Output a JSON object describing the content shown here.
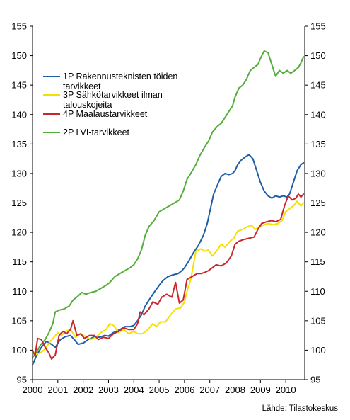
{
  "chart_data": {
    "type": "line",
    "title": "",
    "xlabel": "",
    "ylabel": "",
    "ylim": [
      95,
      155
    ],
    "y_ticks": [
      95,
      100,
      105,
      110,
      115,
      120,
      125,
      130,
      135,
      140,
      145,
      150,
      155
    ],
    "x_ticks": [
      "2000",
      "2001",
      "2002",
      "2003",
      "2004",
      "2005",
      "2006",
      "2007",
      "2008",
      "2009",
      "2010"
    ],
    "xlim": [
      2000,
      2010.75
    ],
    "grid": false,
    "legend_position": "top-left",
    "source": "Lähde: Tilastokeskus",
    "series": [
      {
        "name": "1P Rakennusteknisten töiden tarvikkeet",
        "color": "#1f5ea8",
        "points": [
          [
            2000.0,
            97.5
          ],
          [
            2000.15,
            99.0
          ],
          [
            2000.35,
            100.5
          ],
          [
            2000.55,
            101.5
          ],
          [
            2000.75,
            101.0
          ],
          [
            2000.9,
            100.5
          ],
          [
            2001.1,
            101.8
          ],
          [
            2001.3,
            102.3
          ],
          [
            2001.5,
            102.5
          ],
          [
            2001.65,
            101.8
          ],
          [
            2001.8,
            101.0
          ],
          [
            2002.0,
            101.2
          ],
          [
            2002.2,
            101.8
          ],
          [
            2002.45,
            102.3
          ],
          [
            2002.65,
            102.2
          ],
          [
            2002.85,
            102.5
          ],
          [
            2003.0,
            102.4
          ],
          [
            2003.2,
            103.0
          ],
          [
            2003.45,
            103.5
          ],
          [
            2003.65,
            104.0
          ],
          [
            2003.85,
            104.0
          ],
          [
            2004.0,
            104.2
          ],
          [
            2004.15,
            105.0
          ],
          [
            2004.3,
            106.0
          ],
          [
            2004.45,
            107.5
          ],
          [
            2004.6,
            108.5
          ],
          [
            2004.8,
            109.8
          ],
          [
            2005.0,
            111.0
          ],
          [
            2005.15,
            111.8
          ],
          [
            2005.35,
            112.5
          ],
          [
            2005.55,
            112.8
          ],
          [
            2005.75,
            113.0
          ],
          [
            2005.9,
            113.5
          ],
          [
            2006.0,
            114.0
          ],
          [
            2006.15,
            115.0
          ],
          [
            2006.35,
            116.5
          ],
          [
            2006.55,
            117.8
          ],
          [
            2006.75,
            119.5
          ],
          [
            2006.9,
            121.5
          ],
          [
            2007.0,
            123.5
          ],
          [
            2007.15,
            126.5
          ],
          [
            2007.3,
            128.0
          ],
          [
            2007.45,
            129.5
          ],
          [
            2007.6,
            130.0
          ],
          [
            2007.75,
            129.8
          ],
          [
            2007.9,
            130.0
          ],
          [
            2008.0,
            130.5
          ],
          [
            2008.1,
            131.5
          ],
          [
            2008.25,
            132.3
          ],
          [
            2008.4,
            132.8
          ],
          [
            2008.55,
            133.2
          ],
          [
            2008.7,
            132.5
          ],
          [
            2008.85,
            130.5
          ],
          [
            2009.0,
            128.5
          ],
          [
            2009.15,
            127.0
          ],
          [
            2009.3,
            126.2
          ],
          [
            2009.45,
            125.8
          ],
          [
            2009.6,
            126.2
          ],
          [
            2009.75,
            126.0
          ],
          [
            2009.9,
            126.2
          ],
          [
            2010.05,
            126.0
          ],
          [
            2010.15,
            126.5
          ],
          [
            2010.3,
            128.5
          ],
          [
            2010.45,
            130.5
          ],
          [
            2010.6,
            131.5
          ],
          [
            2010.7,
            131.8
          ]
        ]
      },
      {
        "name": "3P Sähkötarvikkeet ilman talouskojeita",
        "color": "#f5e100",
        "points": [
          [
            2000.0,
            99.8
          ],
          [
            2000.15,
            99.3
          ],
          [
            2000.3,
            99.5
          ],
          [
            2000.5,
            100.2
          ],
          [
            2000.7,
            101.5
          ],
          [
            2000.85,
            102.2
          ],
          [
            2001.0,
            103.0
          ],
          [
            2001.15,
            102.5
          ],
          [
            2001.3,
            103.2
          ],
          [
            2001.5,
            103.5
          ],
          [
            2001.7,
            102.2
          ],
          [
            2001.9,
            102.8
          ],
          [
            2002.1,
            102.3
          ],
          [
            2002.3,
            101.8
          ],
          [
            2002.5,
            102.2
          ],
          [
            2002.7,
            103.0
          ],
          [
            2002.9,
            103.5
          ],
          [
            2003.05,
            104.5
          ],
          [
            2003.2,
            104.2
          ],
          [
            2003.4,
            103.0
          ],
          [
            2003.6,
            103.5
          ],
          [
            2003.8,
            102.8
          ],
          [
            2004.0,
            103.2
          ],
          [
            2004.15,
            102.8
          ],
          [
            2004.35,
            102.8
          ],
          [
            2004.55,
            103.5
          ],
          [
            2004.75,
            104.5
          ],
          [
            2004.9,
            104.0
          ],
          [
            2005.05,
            104.8
          ],
          [
            2005.25,
            104.8
          ],
          [
            2005.45,
            106.0
          ],
          [
            2005.65,
            107.0
          ],
          [
            2005.85,
            107.2
          ],
          [
            2006.0,
            108.2
          ],
          [
            2006.1,
            110.0
          ],
          [
            2006.25,
            112.0
          ],
          [
            2006.45,
            116.8
          ],
          [
            2006.65,
            117.2
          ],
          [
            2006.8,
            116.8
          ],
          [
            2006.95,
            117.0
          ],
          [
            2007.1,
            116.0
          ],
          [
            2007.3,
            117.0
          ],
          [
            2007.45,
            118.0
          ],
          [
            2007.6,
            117.5
          ],
          [
            2007.8,
            118.5
          ],
          [
            2007.95,
            119.0
          ],
          [
            2008.1,
            120.2
          ],
          [
            2008.3,
            120.5
          ],
          [
            2008.5,
            121.0
          ],
          [
            2008.65,
            121.2
          ],
          [
            2008.8,
            120.5
          ],
          [
            2008.95,
            121.0
          ],
          [
            2009.1,
            121.2
          ],
          [
            2009.3,
            121.5
          ],
          [
            2009.5,
            121.3
          ],
          [
            2009.7,
            121.5
          ],
          [
            2009.85,
            122.0
          ],
          [
            2010.0,
            123.5
          ],
          [
            2010.15,
            124.0
          ],
          [
            2010.3,
            124.5
          ],
          [
            2010.45,
            125.3
          ],
          [
            2010.6,
            124.5
          ],
          [
            2010.7,
            125.0
          ]
        ]
      },
      {
        "name": "4P Maalaustarvikkeet",
        "color": "#c8282d",
        "points": [
          [
            2000.0,
            100.0
          ],
          [
            2000.1,
            99.0
          ],
          [
            2000.2,
            102.0
          ],
          [
            2000.35,
            101.8
          ],
          [
            2000.5,
            100.5
          ],
          [
            2000.65,
            99.5
          ],
          [
            2000.75,
            98.5
          ],
          [
            2000.9,
            99.2
          ],
          [
            2001.05,
            102.5
          ],
          [
            2001.2,
            103.2
          ],
          [
            2001.35,
            102.8
          ],
          [
            2001.5,
            103.5
          ],
          [
            2001.6,
            105.0
          ],
          [
            2001.75,
            102.5
          ],
          [
            2001.9,
            102.8
          ],
          [
            2002.05,
            102.0
          ],
          [
            2002.25,
            102.5
          ],
          [
            2002.45,
            102.5
          ],
          [
            2002.6,
            101.8
          ],
          [
            2002.8,
            102.2
          ],
          [
            2003.0,
            102.0
          ],
          [
            2003.2,
            102.8
          ],
          [
            2003.4,
            103.2
          ],
          [
            2003.6,
            103.8
          ],
          [
            2003.8,
            103.5
          ],
          [
            2004.0,
            103.5
          ],
          [
            2004.15,
            104.5
          ],
          [
            2004.25,
            106.5
          ],
          [
            2004.4,
            106.0
          ],
          [
            2004.6,
            107.0
          ],
          [
            2004.75,
            108.2
          ],
          [
            2004.95,
            107.8
          ],
          [
            2005.1,
            109.0
          ],
          [
            2005.3,
            109.5
          ],
          [
            2005.5,
            109.0
          ],
          [
            2005.65,
            111.5
          ],
          [
            2005.8,
            108.0
          ],
          [
            2005.95,
            108.5
          ],
          [
            2006.1,
            112.0
          ],
          [
            2006.3,
            112.5
          ],
          [
            2006.5,
            113.0
          ],
          [
            2006.65,
            113.0
          ],
          [
            2006.8,
            113.2
          ],
          [
            2006.95,
            113.5
          ],
          [
            2007.1,
            114.0
          ],
          [
            2007.25,
            114.5
          ],
          [
            2007.45,
            114.3
          ],
          [
            2007.65,
            114.8
          ],
          [
            2007.85,
            116.0
          ],
          [
            2008.0,
            118.0
          ],
          [
            2008.15,
            118.5
          ],
          [
            2008.35,
            118.8
          ],
          [
            2008.55,
            119.0
          ],
          [
            2008.75,
            119.2
          ],
          [
            2008.9,
            120.5
          ],
          [
            2009.05,
            121.5
          ],
          [
            2009.25,
            121.8
          ],
          [
            2009.45,
            122.0
          ],
          [
            2009.6,
            121.8
          ],
          [
            2009.8,
            122.2
          ],
          [
            2009.95,
            124.5
          ],
          [
            2010.1,
            126.2
          ],
          [
            2010.25,
            125.5
          ],
          [
            2010.4,
            125.8
          ],
          [
            2010.5,
            126.5
          ],
          [
            2010.6,
            126.0
          ],
          [
            2010.7,
            126.5
          ]
        ]
      },
      {
        "name": "2P LVI-tarvikkeet",
        "color": "#55ad3c",
        "points": [
          [
            2000.0,
            98.8
          ],
          [
            2000.15,
            99.5
          ],
          [
            2000.3,
            100.8
          ],
          [
            2000.5,
            101.8
          ],
          [
            2000.65,
            103.0
          ],
          [
            2000.8,
            104.5
          ],
          [
            2000.9,
            106.5
          ],
          [
            2001.05,
            106.8
          ],
          [
            2001.25,
            107.0
          ],
          [
            2001.45,
            107.5
          ],
          [
            2001.6,
            108.5
          ],
          [
            2001.8,
            109.2
          ],
          [
            2001.95,
            109.8
          ],
          [
            2002.1,
            109.5
          ],
          [
            2002.3,
            109.8
          ],
          [
            2002.5,
            110.0
          ],
          [
            2002.7,
            110.5
          ],
          [
            2002.9,
            111.0
          ],
          [
            2003.05,
            111.5
          ],
          [
            2003.25,
            112.5
          ],
          [
            2003.45,
            113.0
          ],
          [
            2003.65,
            113.5
          ],
          [
            2003.85,
            114.0
          ],
          [
            2004.0,
            114.5
          ],
          [
            2004.15,
            115.5
          ],
          [
            2004.3,
            117.0
          ],
          [
            2004.45,
            119.5
          ],
          [
            2004.6,
            121.0
          ],
          [
            2004.8,
            122.0
          ],
          [
            2005.0,
            123.5
          ],
          [
            2005.2,
            124.0
          ],
          [
            2005.4,
            124.5
          ],
          [
            2005.6,
            125.0
          ],
          [
            2005.8,
            125.5
          ],
          [
            2005.95,
            127.0
          ],
          [
            2006.1,
            129.0
          ],
          [
            2006.25,
            130.0
          ],
          [
            2006.45,
            131.5
          ],
          [
            2006.6,
            133.0
          ],
          [
            2006.8,
            134.5
          ],
          [
            2006.95,
            135.5
          ],
          [
            2007.1,
            137.0
          ],
          [
            2007.3,
            138.0
          ],
          [
            2007.45,
            138.5
          ],
          [
            2007.6,
            139.5
          ],
          [
            2007.75,
            140.5
          ],
          [
            2007.9,
            141.5
          ],
          [
            2008.0,
            143.0
          ],
          [
            2008.15,
            144.5
          ],
          [
            2008.3,
            145.0
          ],
          [
            2008.45,
            146.0
          ],
          [
            2008.6,
            147.5
          ],
          [
            2008.75,
            148.0
          ],
          [
            2008.9,
            148.5
          ],
          [
            2009.05,
            150.0
          ],
          [
            2009.15,
            150.8
          ],
          [
            2009.3,
            150.5
          ],
          [
            2009.45,
            148.5
          ],
          [
            2009.6,
            146.5
          ],
          [
            2009.75,
            147.5
          ],
          [
            2009.9,
            147.0
          ],
          [
            2010.05,
            147.5
          ],
          [
            2010.2,
            147.0
          ],
          [
            2010.35,
            147.5
          ],
          [
            2010.5,
            148.0
          ],
          [
            2010.6,
            148.8
          ],
          [
            2010.7,
            149.8
          ]
        ]
      }
    ]
  }
}
